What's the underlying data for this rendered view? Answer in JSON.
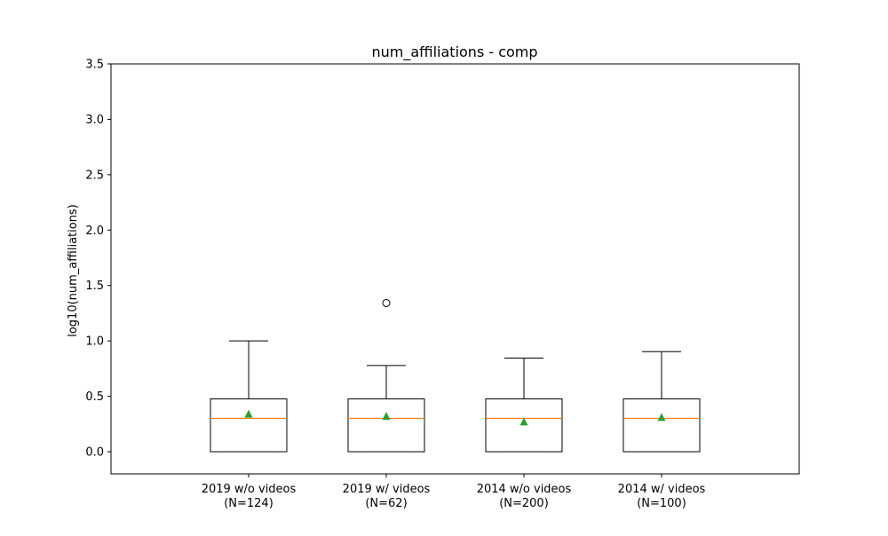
{
  "chart_data": {
    "type": "boxplot",
    "title": "num_affiliations - comp",
    "xlabel": "",
    "ylabel": "log10(num_affiliations)",
    "ylim": [
      -0.2,
      3.5
    ],
    "yticks": [
      "0.0",
      "0.5",
      "1.0",
      "1.5",
      "2.0",
      "2.5",
      "3.0",
      "3.5"
    ],
    "grid": false,
    "colors": {
      "box": "#000000",
      "median": "#ff7f0e",
      "mean": "#2ca02c",
      "flier": "#000000"
    },
    "series": [
      {
        "label_line1": "2019 w/o videos",
        "label_line2": "(N=124)",
        "whisker_low": 0.0,
        "q1": 0.0,
        "median": 0.301,
        "q3": 0.477,
        "whisker_high": 1.0,
        "mean": 0.34,
        "fliers": []
      },
      {
        "label_line1": "2019 w/ videos",
        "label_line2": "(N=62)",
        "whisker_low": 0.0,
        "q1": 0.0,
        "median": 0.301,
        "q3": 0.477,
        "whisker_high": 0.778,
        "mean": 0.32,
        "fliers": [
          1.342
        ]
      },
      {
        "label_line1": "2014 w/o videos",
        "label_line2": "(N=200)",
        "whisker_low": 0.0,
        "q1": 0.0,
        "median": 0.301,
        "q3": 0.477,
        "whisker_high": 0.845,
        "mean": 0.27,
        "fliers": []
      },
      {
        "label_line1": "2014 w/ videos",
        "label_line2": "(N=100)",
        "whisker_low": 0.0,
        "q1": 0.0,
        "median": 0.301,
        "q3": 0.477,
        "whisker_high": 0.903,
        "mean": 0.31,
        "fliers": []
      }
    ]
  }
}
